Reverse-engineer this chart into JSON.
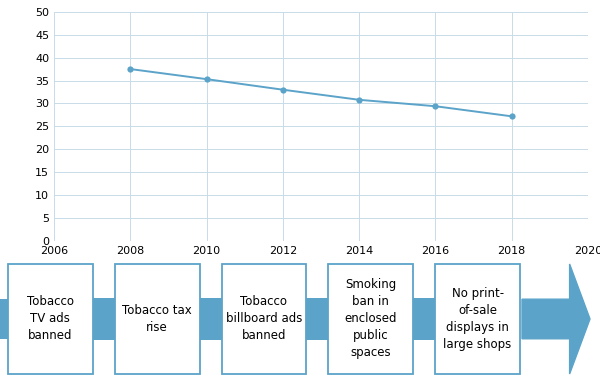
{
  "x_years": [
    2008,
    2010,
    2012,
    2014,
    2016,
    2018
  ],
  "y_values": [
    37.5,
    35.3,
    33.0,
    30.8,
    29.4,
    27.2
  ],
  "line_color": "#5BA3C9",
  "marker_color": "#5BA3C9",
  "xlim": [
    2006,
    2020
  ],
  "ylim": [
    0,
    50
  ],
  "xticks": [
    2006,
    2008,
    2010,
    2012,
    2014,
    2016,
    2018,
    2020
  ],
  "yticks": [
    0,
    5,
    10,
    15,
    20,
    25,
    30,
    35,
    40,
    45,
    50
  ],
  "grid_color": "#C8DCE8",
  "bg_color": "#FFFFFF",
  "arrow_color": "#5BA3C9",
  "box_edge_color": "#5BA3C9",
  "box_labels": [
    "Tobacco\nTV ads\nbanned",
    "Tobacco tax\nrise",
    "Tobacco\nbillboard ads\nbanned",
    "Smoking\nban in\nenclosed\npublic\nspaces",
    "No print-\nof-sale\ndisplays in\nlarge shops"
  ],
  "timeline_fontsize": 8.5
}
